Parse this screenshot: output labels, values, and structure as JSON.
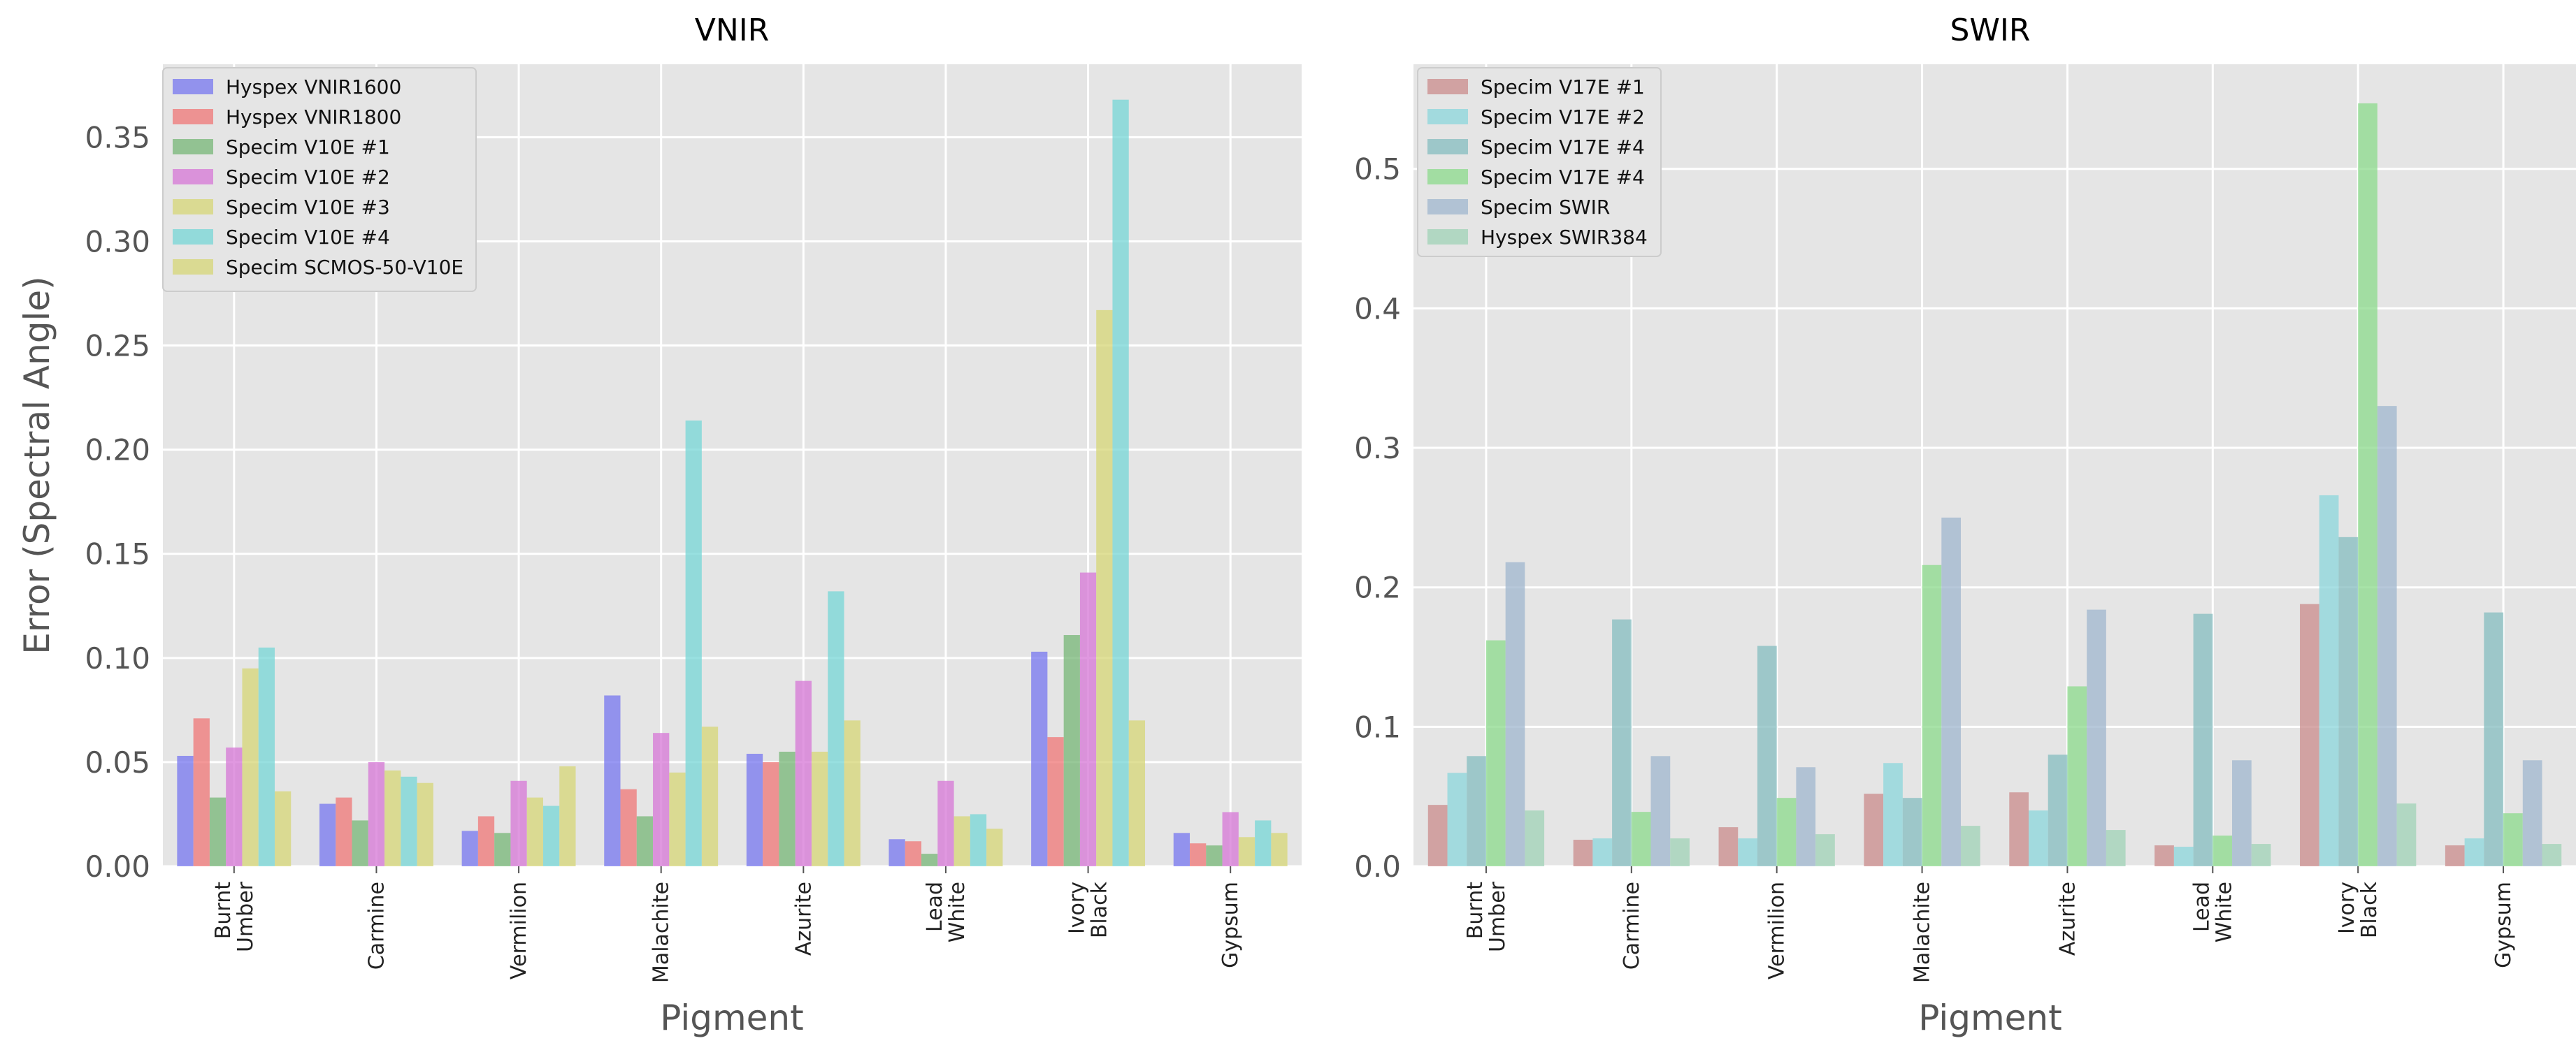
{
  "chart_data": [
    {
      "type": "bar",
      "title": "VNIR",
      "xlabel": "Pigment",
      "ylabel": "Error (Spectral Angle)",
      "ylim": [
        0,
        0.385
      ],
      "yticks": [
        "0.00",
        "0.05",
        "0.10",
        "0.15",
        "0.20",
        "0.25",
        "0.30",
        "0.35"
      ],
      "categories": [
        "Burnt\nUmber",
        "Carmine",
        "Vermilion",
        "Malachite",
        "Azurite",
        "Lead\nWhite",
        "Ivory\nBlack",
        "Gypsum"
      ],
      "legend_position": "top-left",
      "grid": true,
      "series": [
        {
          "name": "Hyspex VNIR1600",
          "color": "#7b7bf0",
          "values": [
            0.053,
            0.03,
            0.017,
            0.082,
            0.054,
            0.013,
            0.103,
            0.016
          ]
        },
        {
          "name": "Hyspex VNIR1800",
          "color": "#f07b7b",
          "values": [
            0.071,
            0.033,
            0.024,
            0.037,
            0.05,
            0.012,
            0.062,
            0.011
          ]
        },
        {
          "name": "Specim V10E #1",
          "color": "#7bb87b",
          "values": [
            0.033,
            0.022,
            0.016,
            0.024,
            0.055,
            0.006,
            0.111,
            0.01
          ]
        },
        {
          "name": "Specim V10E #2",
          "color": "#d77bd7",
          "values": [
            0.057,
            0.05,
            0.041,
            0.064,
            0.089,
            0.041,
            0.141,
            0.026
          ]
        },
        {
          "name": "Specim V10E #3",
          "color": "#d7d77b",
          "values": [
            0.095,
            0.046,
            0.033,
            0.045,
            0.055,
            0.024,
            0.267,
            0.014
          ]
        },
        {
          "name": "Specim V10E #4",
          "color": "#7bd7d7",
          "values": [
            0.105,
            0.043,
            0.029,
            0.214,
            0.132,
            0.025,
            0.368,
            0.022
          ]
        },
        {
          "name": "Specim SCMOS-50-V10E",
          "color": "#d7d77b",
          "values": [
            0.036,
            0.04,
            0.048,
            0.067,
            0.07,
            0.018,
            0.07,
            0.016
          ]
        }
      ]
    },
    {
      "type": "bar",
      "title": "SWIR",
      "xlabel": "Pigment",
      "ylabel": "",
      "ylim": [
        0,
        0.575
      ],
      "yticks": [
        "0.0",
        "0.1",
        "0.2",
        "0.3",
        "0.4",
        "0.5"
      ],
      "categories": [
        "Burnt\nUmber",
        "Carmine",
        "Vermilion",
        "Malachite",
        "Azurite",
        "Lead\nWhite",
        "Ivory\nBlack",
        "Gypsum"
      ],
      "legend_position": "top-left",
      "grid": true,
      "series": [
        {
          "name": "Specim V17E #1",
          "color": "#cc8f8f",
          "values": [
            0.044,
            0.019,
            0.028,
            0.052,
            0.053,
            0.015,
            0.188,
            0.015
          ]
        },
        {
          "name": "Specim V17E #2",
          "color": "#8fd7dc",
          "values": [
            0.067,
            0.02,
            0.02,
            0.074,
            0.04,
            0.014,
            0.266,
            0.02
          ]
        },
        {
          "name": "Specim V17E #4",
          "color": "#89bfc2",
          "values": [
            0.079,
            0.177,
            0.158,
            0.049,
            0.08,
            0.181,
            0.236,
            0.182
          ]
        },
        {
          "name": "Specim V17E #4",
          "color": "#8fdb8f",
          "values": [
            0.162,
            0.039,
            0.049,
            0.216,
            0.129,
            0.022,
            0.547,
            0.038
          ]
        },
        {
          "name": "Specim SWIR",
          "color": "#a3b9cf",
          "values": [
            0.218,
            0.079,
            0.071,
            0.25,
            0.184,
            0.076,
            0.33,
            0.076
          ]
        },
        {
          "name": "Hyspex SWIR384",
          "color": "#a3d4b8",
          "values": [
            0.04,
            0.02,
            0.023,
            0.029,
            0.026,
            0.016,
            0.045,
            0.016
          ]
        }
      ]
    }
  ]
}
